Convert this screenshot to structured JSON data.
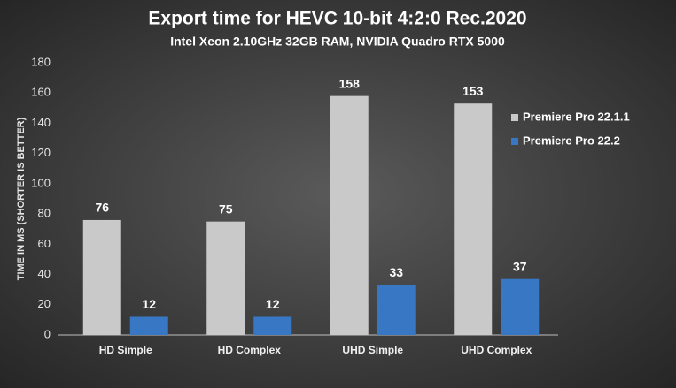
{
  "chart_data": {
    "type": "bar",
    "title": "Export time for HEVC 10-bit 4:2:0 Rec.2020",
    "subtitle": "Intel Xeon 2.10GHz 32GB RAM, NVIDIA Quadro RTX 5000",
    "y_label": "TIME IN MS (SHORTER IS BETTER)",
    "categories": [
      "HD Simple",
      "HD Complex",
      "UHD Simple",
      "UHD Complex"
    ],
    "series": [
      {
        "name": "Premiere Pro 22.1.1",
        "color": "#c9c9c9",
        "values": [
          76,
          75,
          158,
          153
        ]
      },
      {
        "name": "Premiere Pro 22.2",
        "color": "#3777c4",
        "values": [
          12,
          12,
          33,
          37
        ]
      }
    ],
    "ylim": [
      0,
      180
    ],
    "yticks": [
      0,
      20,
      40,
      60,
      80,
      100,
      120,
      140,
      160,
      180
    ],
    "grid": false,
    "legend": "right"
  }
}
